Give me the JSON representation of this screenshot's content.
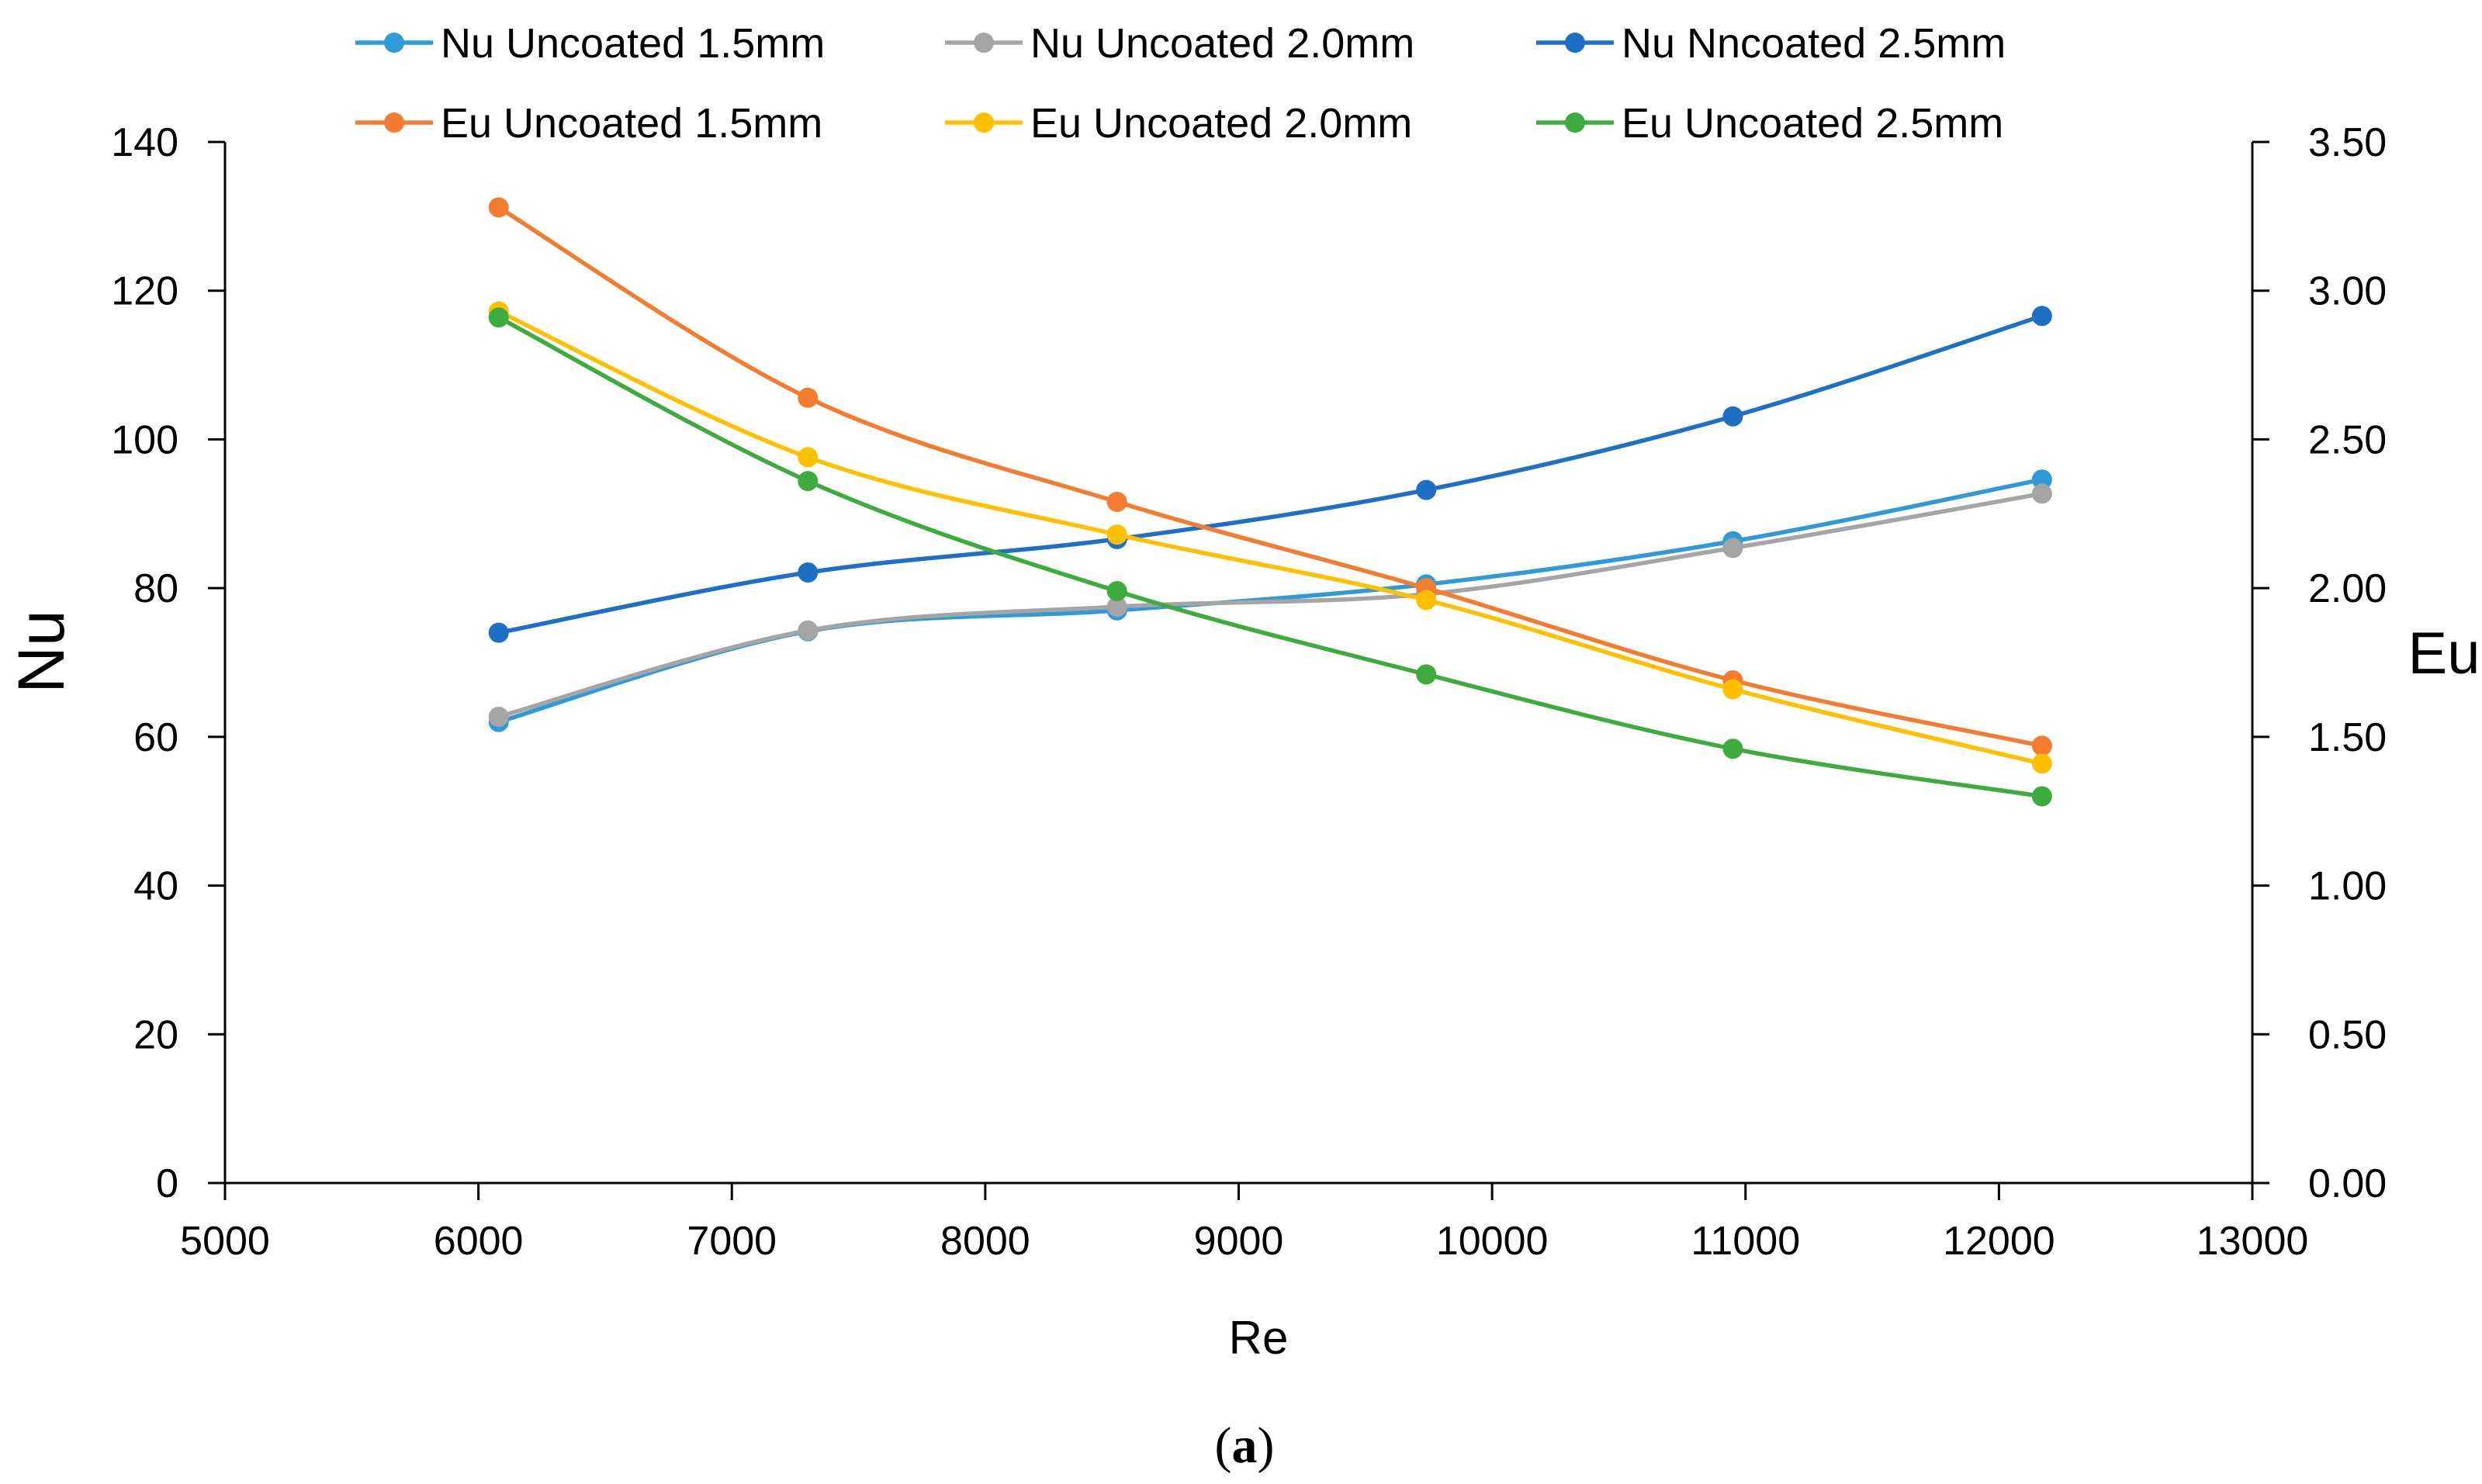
{
  "chart_data": {
    "type": "line",
    "title": "",
    "xlabel": "Re",
    "ylabel": "Nu",
    "y2label": "Eu",
    "xlim": [
      5000,
      13000
    ],
    "ylim": [
      0,
      140
    ],
    "y2lim": [
      0,
      3.5
    ],
    "x_ticks": [
      "5000",
      "6000",
      "7000",
      "8000",
      "9000",
      "10000",
      "11000",
      "12000",
      "13000"
    ],
    "x_tick_values": [
      5000,
      6000,
      7000,
      8000,
      9000,
      10000,
      11000,
      12000,
      13000
    ],
    "y_ticks": [
      "0",
      "20",
      "40",
      "60",
      "80",
      "100",
      "120",
      "140"
    ],
    "y_tick_values": [
      0,
      20,
      40,
      60,
      80,
      100,
      120,
      140
    ],
    "y2_ticks": [
      "0.00",
      "0.50",
      "1.00",
      "1.50",
      "2.00",
      "2.50",
      "3.00",
      "3.50"
    ],
    "y2_tick_values": [
      0,
      0.5,
      1.0,
      1.5,
      2.0,
      2.5,
      3.0,
      3.5
    ],
    "grid": false,
    "legend_position": "top",
    "x": [
      6080,
      7300,
      8520,
      9740,
      10950,
      12170
    ],
    "series": [
      {
        "name": "Nu Uncoated 1.5mm",
        "axis": "left",
        "color": "#2E9BD6",
        "values": [
          62,
          74.2,
          77,
          80.5,
          86.3,
          94.6
        ]
      },
      {
        "name": "Nu Uncoated 2.0mm",
        "axis": "left",
        "color": "#A5A5A5",
        "values": [
          62.7,
          74.3,
          77.5,
          79.2,
          85.4,
          92.7
        ]
      },
      {
        "name": "Nu Nncoated 2.5mm",
        "axis": "left",
        "color": "#1F6FC5",
        "values": [
          74,
          82.1,
          86.6,
          93.2,
          103.1,
          116.6
        ]
      },
      {
        "name": "Eu Uncoated 1.5mm",
        "axis": "right",
        "color": "#F47C30",
        "values": [
          3.28,
          2.64,
          2.29,
          2.0,
          1.69,
          1.47
        ]
      },
      {
        "name": "Eu Uncoated 2.0mm",
        "axis": "right",
        "color": "#FFC000",
        "values": [
          2.93,
          2.44,
          2.18,
          1.96,
          1.66,
          1.41
        ]
      },
      {
        "name": "Eu Uncoated 2.5mm",
        "axis": "right",
        "color": "#3EAB3E",
        "values": [
          2.91,
          2.36,
          1.99,
          1.71,
          1.46,
          1.3
        ]
      }
    ]
  },
  "caption": {
    "open": "(",
    "label": "a",
    "close": ")"
  }
}
